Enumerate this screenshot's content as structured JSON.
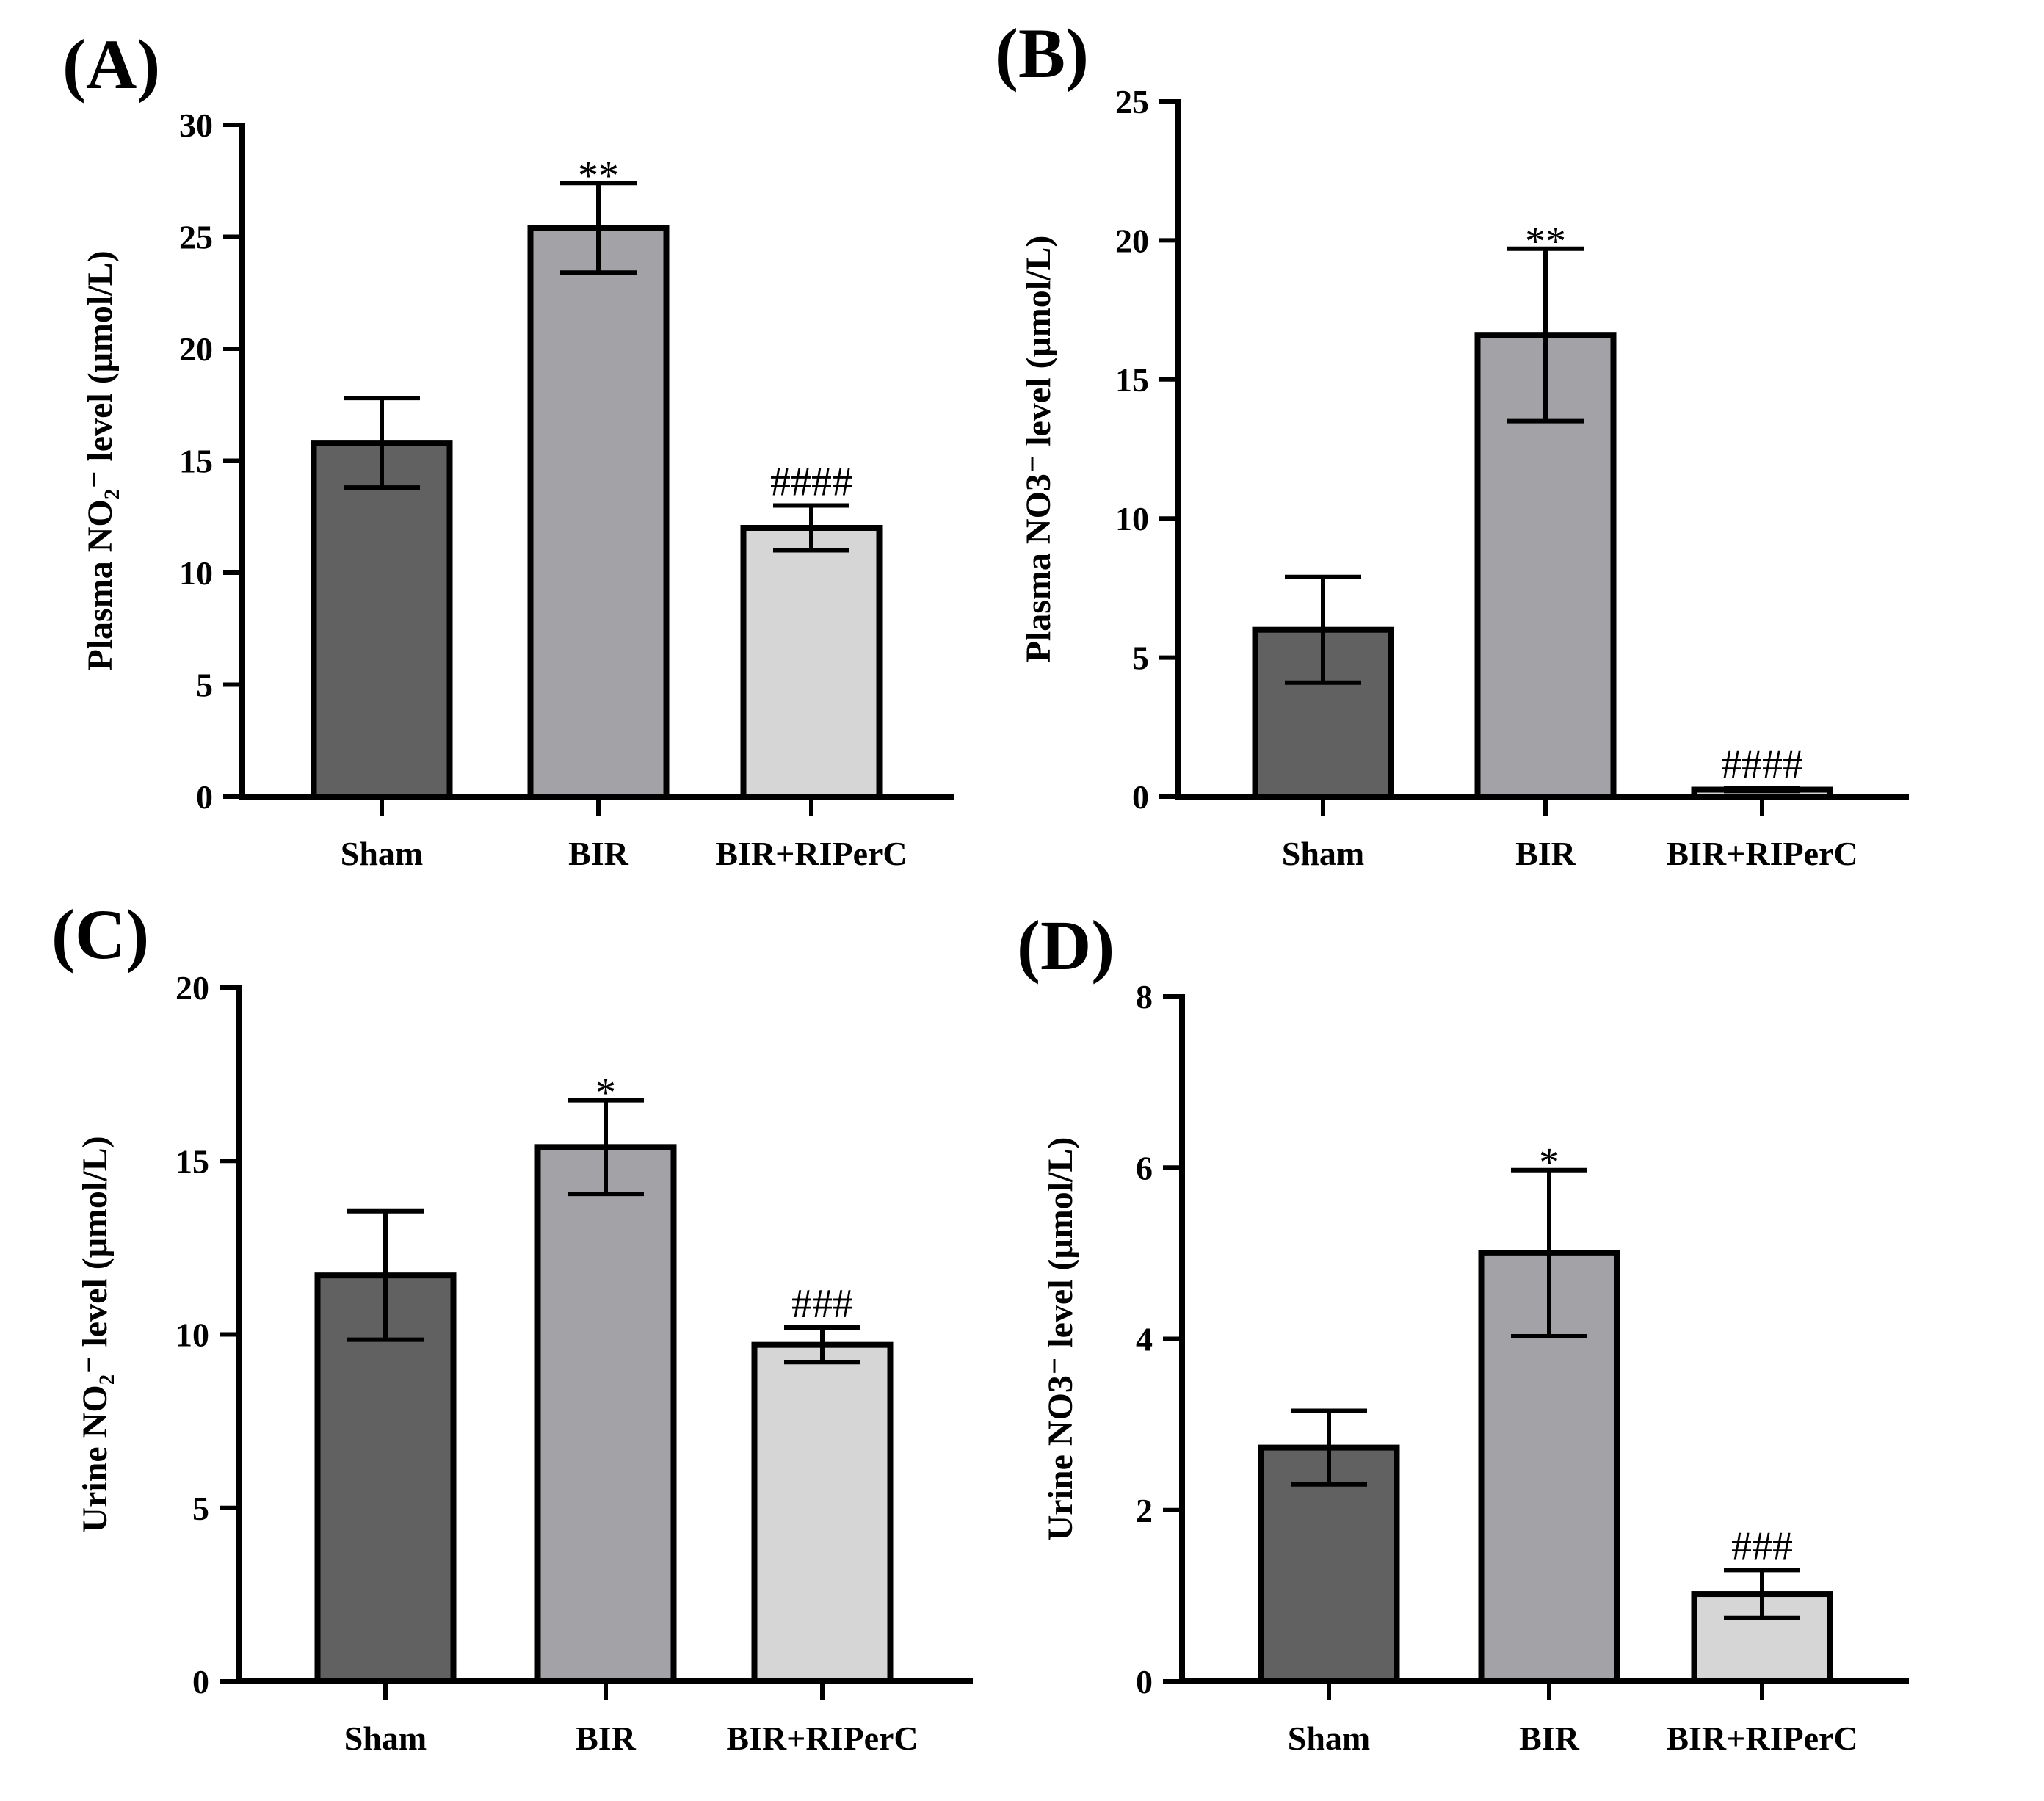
{
  "chart_data": [
    {
      "panel": "(A)",
      "type": "bar",
      "categories": [
        "Sham",
        "BIR",
        "BIR+RIPerC"
      ],
      "values": [
        15.8,
        25.4,
        12.0
      ],
      "errors": [
        2.0,
        2.0,
        1.0
      ],
      "annotations": [
        "",
        "**",
        "####"
      ],
      "ylabel": "Plasma NO₂⁻ level (μmol/L)",
      "ylim": [
        0,
        30
      ],
      "yticks": [
        0,
        5,
        10,
        15,
        20,
        25,
        30
      ],
      "bar_colors": [
        "#616161",
        "#a3a2a6",
        "#d6d6d6"
      ]
    },
    {
      "panel": "(B)",
      "type": "bar",
      "categories": [
        "Sham",
        "BIR",
        "BIR+RIPerC"
      ],
      "values": [
        6.0,
        16.6,
        0.25
      ],
      "errors": [
        1.9,
        3.1,
        0.05
      ],
      "annotations": [
        "",
        "**",
        "####"
      ],
      "ylabel": "Plasma NO3⁻ level (μmol/L)",
      "ylim": [
        0,
        25
      ],
      "yticks": [
        0,
        5,
        10,
        15,
        20,
        25
      ],
      "bar_colors": [
        "#616161",
        "#a3a2a6",
        "#d6d6d6"
      ]
    },
    {
      "panel": "(C)",
      "type": "bar",
      "categories": [
        "Sham",
        "BIR",
        "BIR+RIPerC"
      ],
      "values": [
        11.7,
        15.4,
        9.7
      ],
      "errors": [
        1.85,
        1.35,
        0.5
      ],
      "annotations": [
        "",
        "*",
        "###"
      ],
      "ylabel": "Urine NO₂⁻ level (μmol/L)",
      "ylim": [
        0,
        20
      ],
      "yticks": [
        0,
        5,
        10,
        15,
        20
      ],
      "bar_colors": [
        "#616161",
        "#a3a2a6",
        "#d6d6d6"
      ]
    },
    {
      "panel": "(D)",
      "type": "bar",
      "categories": [
        "Sham",
        "BIR",
        "BIR+RIPerC"
      ],
      "values": [
        2.73,
        5.0,
        1.02
      ],
      "errors": [
        0.43,
        0.97,
        0.28
      ],
      "annotations": [
        "",
        "*",
        "###"
      ],
      "ylabel": "Urine NO3⁻ level (μmol/L)",
      "ylim": [
        0,
        8
      ],
      "yticks": [
        0,
        2,
        4,
        6,
        8
      ],
      "bar_colors": [
        "#616161",
        "#a3a2a6",
        "#d6d6d6"
      ]
    }
  ]
}
